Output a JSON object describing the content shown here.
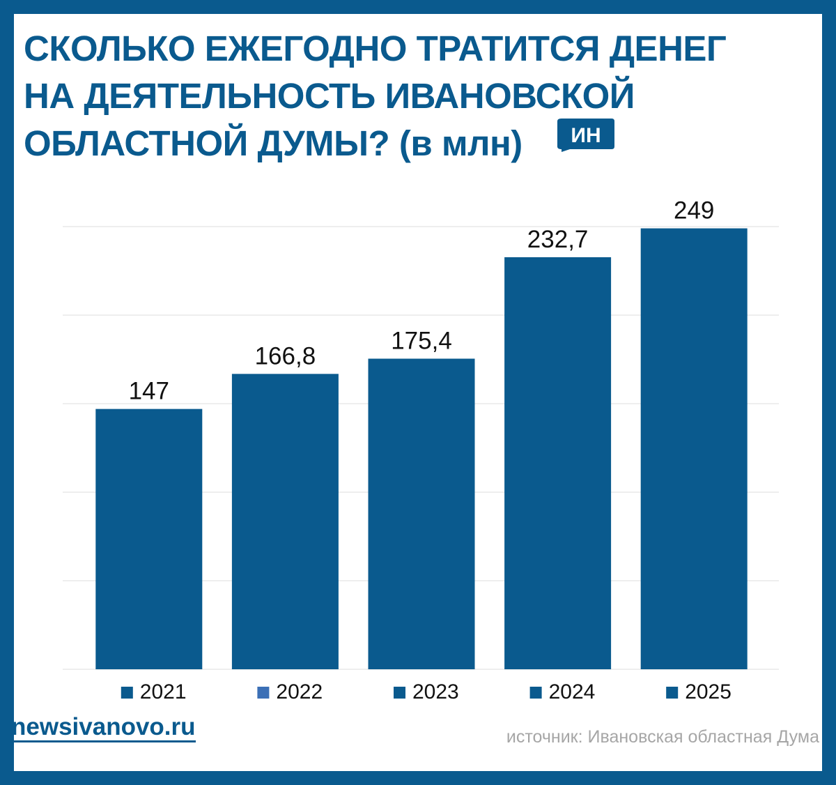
{
  "header": {
    "title": "СКОЛЬКО ЕЖЕГОДНО ТРАТИТСЯ ДЕНЕГ\nНА ДЕЯТЕЛЬНОСТЬ ИВАНОВСКОЙ\nОБЛАСТНОЙ ДУМЫ? (в млн)",
    "logo_text": "ИН"
  },
  "footer": {
    "site": "newsivanovo.ru",
    "source": "источник: Ивановская областная Дума"
  },
  "colors": {
    "brand": "#0a5a8e",
    "bar": "#0a5a8e",
    "legend_2022": "#3b6fb6",
    "grid": "#e9e9e9",
    "source_text": "#a6a6a6"
  },
  "chart_data": {
    "type": "bar",
    "title": "СКОЛЬКО ЕЖЕГОДНО ТРАТИТСЯ ДЕНЕГ НА ДЕЯТЕЛЬНОСТЬ ИВАНОВСКОЙ ОБЛАСТНОЙ ДУМЫ? (в млн)",
    "categories": [
      "2021",
      "2022",
      "2023",
      "2024",
      "2025"
    ],
    "values": [
      147,
      166.8,
      175.4,
      232.7,
      249
    ],
    "value_labels": [
      "147",
      "166,8",
      "175,4",
      "232,7",
      "249"
    ],
    "legend": [
      "2021",
      "2022",
      "2023",
      "2024",
      "2025"
    ],
    "legend_position": "bottom",
    "xlabel": "",
    "ylabel": "",
    "ylim": [
      0,
      250
    ],
    "grid": true,
    "grid_step": 50
  }
}
